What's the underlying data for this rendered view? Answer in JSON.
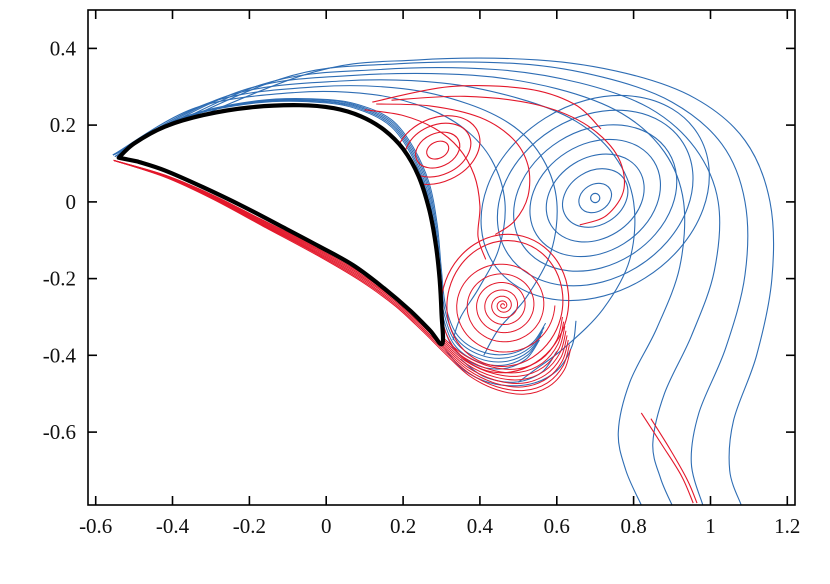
{
  "figure": {
    "background": "#ffffff"
  },
  "chart_data": {
    "type": "contour",
    "title": "",
    "xlabel": "",
    "ylabel": "",
    "grid": false,
    "legend": "none",
    "x_axis": {
      "range": [
        -0.62,
        1.22
      ],
      "tick_values": [
        -0.6,
        -0.4,
        -0.2,
        0,
        0.2,
        0.4,
        0.6,
        0.8,
        1,
        1.2
      ],
      "tick_labels": [
        "-0.6",
        "-0.4",
        "-0.2",
        "0",
        "0.2",
        "0.4",
        "0.6",
        "0.8",
        "1",
        "1.2"
      ]
    },
    "y_axis": {
      "range": [
        -0.79,
        0.5
      ],
      "tick_values": [
        0.4,
        0.2,
        0,
        -0.2,
        -0.4,
        -0.6
      ],
      "tick_labels": [
        "0.4",
        "0.2",
        "0",
        "-0.2",
        "-0.4",
        "-0.6"
      ]
    },
    "colors": {
      "positive": "#e3182b",
      "negative": "#2e6db4",
      "body": "#000000",
      "frame": "#000000"
    },
    "airfoil_outline": [
      [
        -0.54,
        0.115
      ],
      [
        -0.5,
        0.152
      ],
      [
        -0.42,
        0.196
      ],
      [
        -0.32,
        0.226
      ],
      [
        -0.2,
        0.246
      ],
      [
        -0.07,
        0.252
      ],
      [
        0.02,
        0.244
      ],
      [
        0.09,
        0.223
      ],
      [
        0.15,
        0.188
      ],
      [
        0.2,
        0.138
      ],
      [
        0.24,
        0.068
      ],
      [
        0.268,
        -0.02
      ],
      [
        0.285,
        -0.11
      ],
      [
        0.295,
        -0.2
      ],
      [
        0.3,
        -0.29
      ],
      [
        0.302,
        -0.37
      ],
      [
        0.27,
        -0.335
      ],
      [
        0.22,
        -0.285
      ],
      [
        0.15,
        -0.225
      ],
      [
        0.07,
        -0.165
      ],
      [
        -0.02,
        -0.115
      ],
      [
        -0.12,
        -0.062
      ],
      [
        -0.22,
        -0.01
      ],
      [
        -0.32,
        0.038
      ],
      [
        -0.42,
        0.082
      ],
      [
        -0.49,
        0.105
      ]
    ],
    "features": [
      {
        "kind": "curve",
        "color": "neg",
        "pts": [
          [
            -0.555,
            0.122
          ],
          [
            -0.34,
            0.245
          ],
          [
            -0.08,
            0.285
          ],
          [
            0.12,
            0.28
          ],
          [
            0.26,
            0.245
          ],
          [
            0.36,
            0.19
          ],
          [
            0.43,
            0.11
          ],
          [
            0.465,
            0.0
          ],
          [
            0.45,
            -0.12
          ],
          [
            0.4,
            -0.22
          ],
          [
            0.35,
            -0.3
          ],
          [
            0.33,
            -0.36
          ]
        ]
      },
      {
        "kind": "curve",
        "color": "neg",
        "pts": [
          [
            -0.555,
            0.122
          ],
          [
            -0.3,
            0.26
          ],
          [
            -0.02,
            0.3
          ],
          [
            0.2,
            0.295
          ],
          [
            0.37,
            0.255
          ],
          [
            0.49,
            0.195
          ],
          [
            0.565,
            0.11
          ],
          [
            0.6,
            0.0
          ],
          [
            0.585,
            -0.13
          ],
          [
            0.52,
            -0.25
          ],
          [
            0.45,
            -0.33
          ],
          [
            0.41,
            -0.4
          ]
        ]
      },
      {
        "kind": "curve",
        "color": "neg",
        "pts": [
          [
            -0.555,
            0.122
          ],
          [
            -0.26,
            0.275
          ],
          [
            0.04,
            0.315
          ],
          [
            0.3,
            0.31
          ],
          [
            0.5,
            0.27
          ],
          [
            0.65,
            0.21
          ],
          [
            0.75,
            0.12
          ],
          [
            0.8,
            0.0
          ],
          [
            0.79,
            -0.15
          ],
          [
            0.72,
            -0.28
          ],
          [
            0.62,
            -0.38
          ],
          [
            0.54,
            -0.44
          ],
          [
            0.5,
            -0.47
          ]
        ]
      },
      {
        "kind": "curve",
        "color": "neg",
        "pts": [
          [
            -0.555,
            0.122
          ],
          [
            -0.22,
            0.29
          ],
          [
            0.08,
            0.33
          ],
          [
            0.38,
            0.33
          ],
          [
            0.6,
            0.295
          ],
          [
            0.77,
            0.23
          ],
          [
            0.88,
            0.13
          ],
          [
            0.93,
            0.0
          ],
          [
            0.92,
            -0.17
          ],
          [
            0.86,
            -0.33
          ],
          [
            0.79,
            -0.47
          ],
          [
            0.76,
            -0.6
          ],
          [
            0.78,
            -0.7
          ],
          [
            0.82,
            -0.79
          ]
        ]
      },
      {
        "kind": "curve",
        "color": "neg",
        "pts": [
          [
            -0.555,
            0.122
          ],
          [
            -0.17,
            0.305
          ],
          [
            0.14,
            0.345
          ],
          [
            0.44,
            0.345
          ],
          [
            0.66,
            0.31
          ],
          [
            0.84,
            0.245
          ],
          [
            0.96,
            0.14
          ],
          [
            1.02,
            0.0
          ],
          [
            1.01,
            -0.18
          ],
          [
            0.95,
            -0.35
          ],
          [
            0.88,
            -0.5
          ],
          [
            0.85,
            -0.63
          ],
          [
            0.87,
            -0.72
          ],
          [
            0.9,
            -0.79
          ]
        ]
      },
      {
        "kind": "curve",
        "color": "neg",
        "pts": [
          [
            -0.555,
            0.122
          ],
          [
            -0.12,
            0.32
          ],
          [
            0.19,
            0.36
          ],
          [
            0.5,
            0.36
          ],
          [
            0.72,
            0.325
          ],
          [
            0.9,
            0.26
          ],
          [
            1.03,
            0.15
          ],
          [
            1.09,
            0.0
          ],
          [
            1.09,
            -0.19
          ],
          [
            1.04,
            -0.38
          ],
          [
            0.97,
            -0.55
          ],
          [
            0.95,
            -0.68
          ],
          [
            0.98,
            -0.79
          ]
        ]
      },
      {
        "kind": "curve",
        "color": "neg",
        "pts": [
          [
            -0.555,
            0.122
          ],
          [
            -0.06,
            0.33
          ],
          [
            0.24,
            0.37
          ],
          [
            0.55,
            0.37
          ],
          [
            0.78,
            0.335
          ],
          [
            0.96,
            0.27
          ],
          [
            1.09,
            0.16
          ],
          [
            1.155,
            0.0
          ],
          [
            1.16,
            -0.2
          ],
          [
            1.12,
            -0.4
          ],
          [
            1.06,
            -0.57
          ],
          [
            1.05,
            -0.7
          ],
          [
            1.08,
            -0.79
          ]
        ]
      },
      {
        "kind": "bundle",
        "color": "neg",
        "n": 5,
        "dx": 0.004,
        "dy": 0.011,
        "pts": [
          [
            -0.55,
            0.118
          ],
          [
            -0.38,
            0.215
          ],
          [
            -0.18,
            0.258
          ],
          [
            0.0,
            0.258
          ],
          [
            0.1,
            0.235
          ],
          [
            0.17,
            0.195
          ],
          [
            0.22,
            0.125
          ],
          [
            0.26,
            0.03
          ],
          [
            0.28,
            -0.08
          ],
          [
            0.29,
            -0.2
          ],
          [
            0.3,
            -0.3
          ],
          [
            0.33,
            -0.38
          ],
          [
            0.39,
            -0.425
          ],
          [
            0.46,
            -0.435
          ],
          [
            0.52,
            -0.41
          ],
          [
            0.555,
            -0.36
          ]
        ]
      },
      {
        "kind": "curve",
        "color": "neg",
        "pts": [
          [
            0.31,
            -0.385
          ],
          [
            0.36,
            -0.44
          ],
          [
            0.44,
            -0.475
          ],
          [
            0.53,
            -0.475
          ],
          [
            0.6,
            -0.44
          ],
          [
            0.64,
            -0.375
          ],
          [
            0.65,
            -0.31
          ]
        ]
      },
      {
        "kind": "curve",
        "color": "neg",
        "pts": [
          [
            0.35,
            -0.41
          ],
          [
            0.41,
            -0.455
          ],
          [
            0.49,
            -0.47
          ],
          [
            0.56,
            -0.445
          ],
          [
            0.6,
            -0.39
          ]
        ]
      },
      {
        "kind": "loops",
        "color": "neg",
        "cx": 0.7,
        "cy": 0.01,
        "rot": -32,
        "ry_ratio": 0.78,
        "radii": [
          0.045,
          0.09,
          0.135,
          0.18,
          0.225,
          0.27,
          0.315
        ]
      },
      {
        "kind": "dot",
        "color": "neg",
        "cx": 0.7,
        "cy": 0.01,
        "r": 0.012
      },
      {
        "kind": "bundle",
        "color": "pos",
        "n": 8,
        "dx": 0.003,
        "dy": -0.012,
        "pts": [
          [
            -0.553,
            0.108
          ],
          [
            -0.42,
            0.07
          ],
          [
            -0.3,
            0.02
          ],
          [
            -0.17,
            -0.045
          ],
          [
            -0.03,
            -0.115
          ],
          [
            0.08,
            -0.175
          ],
          [
            0.17,
            -0.235
          ],
          [
            0.24,
            -0.295
          ],
          [
            0.3,
            -0.35
          ],
          [
            0.36,
            -0.4
          ],
          [
            0.43,
            -0.43
          ],
          [
            0.5,
            -0.435
          ],
          [
            0.56,
            -0.41
          ],
          [
            0.6,
            -0.36
          ],
          [
            0.615,
            -0.3
          ]
        ]
      },
      {
        "kind": "spiral",
        "color": "pos",
        "cx": 0.46,
        "cy": -0.27,
        "r0": 0.004,
        "r1": 0.135,
        "turns": 7,
        "rot": 0,
        "ry_ratio": 0.95,
        "pow": 1.6
      },
      {
        "kind": "loops",
        "color": "pos",
        "cx": 0.465,
        "cy": -0.265,
        "rot": 15,
        "ry_ratio": 1.1,
        "radii": [
          0.15,
          0.165
        ]
      },
      {
        "kind": "loops",
        "color": "pos",
        "cx": 0.29,
        "cy": 0.135,
        "rot": -25,
        "ry_ratio": 0.72,
        "radii": [
          0.03,
          0.06,
          0.09,
          0.115
        ]
      },
      {
        "kind": "curve",
        "color": "pos",
        "pts": [
          [
            0.1,
            0.24
          ],
          [
            0.2,
            0.225
          ],
          [
            0.285,
            0.19
          ],
          [
            0.345,
            0.14
          ],
          [
            0.385,
            0.07
          ],
          [
            0.4,
            -0.01
          ],
          [
            0.395,
            -0.09
          ],
          [
            0.415,
            -0.15
          ]
        ]
      },
      {
        "kind": "curve",
        "color": "pos",
        "pts": [
          [
            0.13,
            0.255
          ],
          [
            0.27,
            0.25
          ],
          [
            0.4,
            0.22
          ],
          [
            0.485,
            0.165
          ],
          [
            0.525,
            0.095
          ],
          [
            0.525,
            0.015
          ],
          [
            0.49,
            -0.05
          ],
          [
            0.44,
            -0.085
          ]
        ]
      },
      {
        "kind": "curve",
        "color": "pos",
        "pts": [
          [
            0.17,
            0.265
          ],
          [
            0.36,
            0.275
          ],
          [
            0.54,
            0.255
          ],
          [
            0.67,
            0.205
          ],
          [
            0.755,
            0.125
          ],
          [
            0.775,
            0.035
          ],
          [
            0.73,
            -0.035
          ],
          [
            0.66,
            -0.06
          ]
        ]
      },
      {
        "kind": "curve",
        "color": "pos",
        "pts": [
          [
            0.12,
            0.26
          ],
          [
            0.32,
            0.3
          ],
          [
            0.52,
            0.295
          ],
          [
            0.645,
            0.255
          ],
          [
            0.715,
            0.19
          ]
        ]
      },
      {
        "kind": "curve",
        "color": "pos",
        "pts": [
          [
            0.82,
            -0.55
          ],
          [
            0.875,
            -0.635
          ],
          [
            0.925,
            -0.715
          ],
          [
            0.955,
            -0.785
          ]
        ]
      },
      {
        "kind": "curve",
        "color": "pos",
        "pts": [
          [
            0.845,
            -0.565
          ],
          [
            0.895,
            -0.645
          ],
          [
            0.94,
            -0.725
          ],
          [
            0.965,
            -0.785
          ]
        ]
      }
    ]
  }
}
